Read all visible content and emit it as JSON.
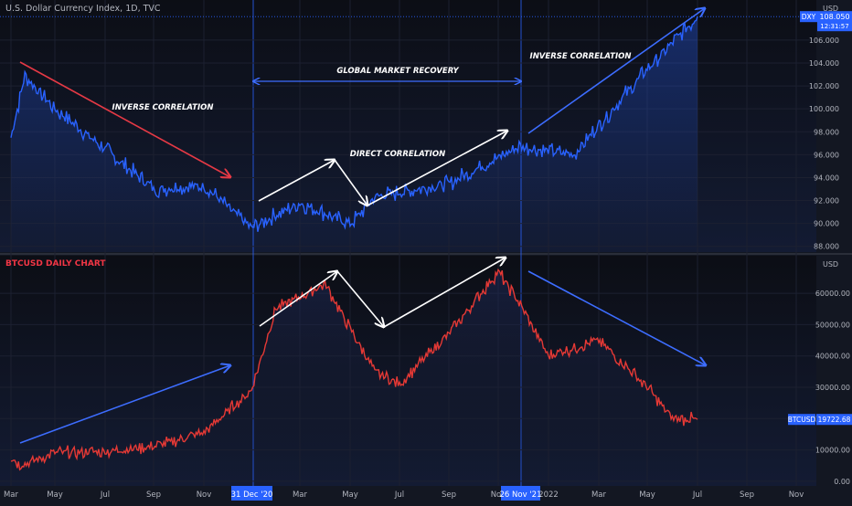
{
  "top_title": "U.S. Dollar Currency Index, 1D, TVC",
  "bottom_title": "BTCUSD DAILY CHART",
  "colors": {
    "bg": "#131722",
    "dxy": "#2962ff",
    "btc": "#e53935",
    "down_arrow": "#e53945",
    "up_arrow_white": "#ffffff",
    "blue_arrow": "#3d6dff"
  },
  "annotations": {
    "inverse1": "INVERSE CORRELATION",
    "global": "GLOBAL MARKET RECOVERY",
    "direct": "DIRECT CORRELATION",
    "inverse2": "INVERSE CORRELATION"
  },
  "chart_data": [
    {
      "type": "line",
      "title": "U.S. Dollar Currency Index, 1D, TVC",
      "ylabel": "USD",
      "ylim": [
        87.5,
        109.5
      ],
      "yticks": [
        "88.000",
        "90.000",
        "92.000",
        "94.000",
        "96.000",
        "98.000",
        "100.000",
        "102.000",
        "104.000",
        "106.000"
      ],
      "last_label": "DXY",
      "last_value": "108.050",
      "countdown": "12:31:57",
      "series": [
        {
          "name": "DXY",
          "x": [
            "2020-03",
            "2020-03-20",
            "2020-05",
            "2020-07",
            "2020-09",
            "2020-11",
            "2020-12-31",
            "2021-03",
            "2021-05",
            "2021-06",
            "2021-09",
            "2021-11-26",
            "2022-02",
            "2022-05",
            "2022-07"
          ],
          "values": [
            97.5,
            102.9,
            100.0,
            96.5,
            93.0,
            93.3,
            89.6,
            91.8,
            89.9,
            92.3,
            93.5,
            96.7,
            96.0,
            103.5,
            108.05
          ]
        }
      ]
    },
    {
      "type": "line",
      "title": "BTCUSD DAILY CHART",
      "ylabel": "USD",
      "ylim": [
        -1500,
        72000
      ],
      "yticks": [
        "0.00",
        "10000.00",
        "20000.00",
        "30000.00",
        "40000.00",
        "50000.00",
        "60000.00"
      ],
      "last_label": "BTCUSD",
      "last_value": "19722.68",
      "series": [
        {
          "name": "BTCUSD",
          "x": [
            "2020-03",
            "2020-03-13",
            "2020-05",
            "2020-07",
            "2020-09",
            "2020-11",
            "2020-12-31",
            "2021-02",
            "2021-04",
            "2021-06",
            "2021-07",
            "2021-09",
            "2021-11",
            "2021-11-26",
            "2022-01",
            "2022-03",
            "2022-05",
            "2022-06",
            "2022-07"
          ],
          "values": [
            8000,
            5000,
            9000,
            9500,
            11000,
            15500,
            29000,
            55000,
            63000,
            35000,
            31000,
            47000,
            67000,
            57000,
            40000,
            45000,
            30000,
            20000,
            19722.68
          ]
        }
      ]
    }
  ],
  "x_axis": {
    "ticks": [
      "Mar",
      "May",
      "Jul",
      "Sep",
      "Nov",
      "Mar",
      "May",
      "Jul",
      "Sep",
      "Nov",
      "2022",
      "Mar",
      "May",
      "Jul",
      "Sep",
      "Nov"
    ],
    "hl1": "31 Dec '20",
    "hl2": "26 Nov '21"
  }
}
